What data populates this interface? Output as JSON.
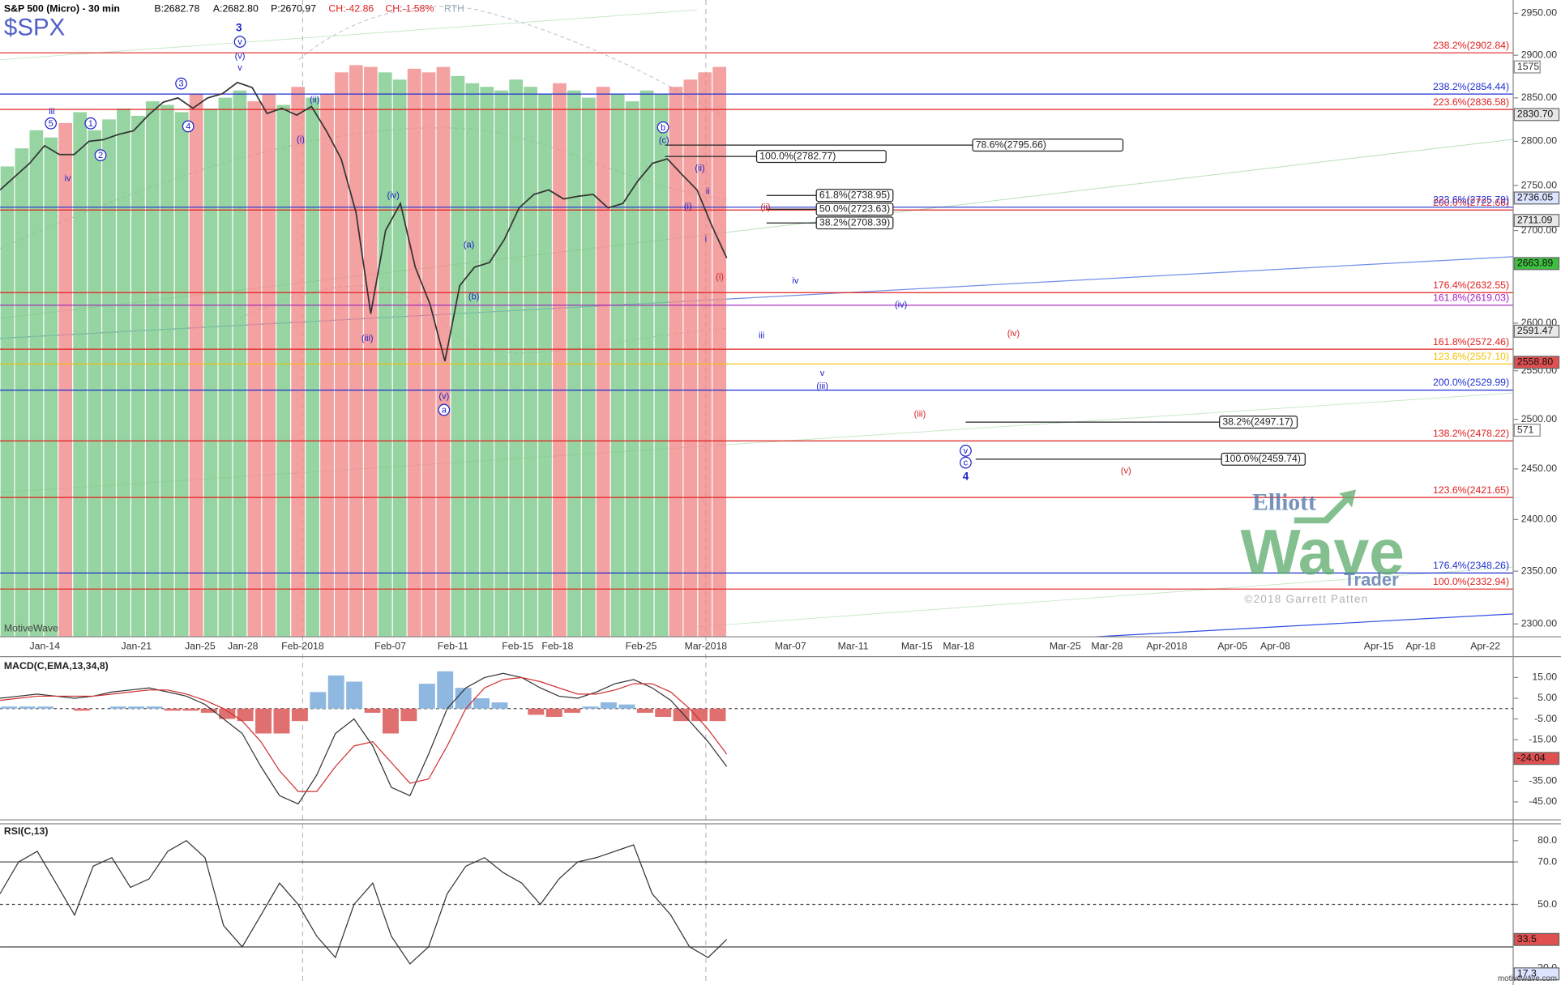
{
  "header": {
    "instrument": "S&P 500 (Micro) - 30 min",
    "bid": "B:2682.78",
    "ask": "A:2682.80",
    "price": "P:2670.97",
    "change": "CH:-42.86",
    "change_pct": "CH:-1.58%",
    "session": "RTH",
    "symbol": "$SPX",
    "platform": "MotiveWave",
    "footer": "motivewave.com"
  },
  "logo": {
    "line1": "Elliott",
    "line2": "Wave",
    "line3": "Trader",
    "copyright": "©2018 Garrett Patten"
  },
  "chart_data": [
    {
      "type": "line",
      "log_scale": true,
      "ylim": [
        2288,
        2966
      ],
      "yticks": [
        {
          "value": 2950,
          "label": "2950.00"
        },
        {
          "value": 2900,
          "label": "2900.00"
        },
        {
          "value": 2850,
          "label": "2850.00"
        },
        {
          "value": 2800,
          "label": "2800.00"
        },
        {
          "value": 2750,
          "label": "2750.00"
        },
        {
          "value": 2700,
          "label": "2700.00"
        },
        {
          "value": 2600,
          "label": "2600.00"
        },
        {
          "value": 2550,
          "label": "2550.00"
        },
        {
          "value": 2500,
          "label": "2500.00"
        },
        {
          "value": 2450,
          "label": "2450.00"
        },
        {
          "value": 2400,
          "label": "2400.00"
        },
        {
          "value": 2350,
          "label": "2350.00"
        },
        {
          "value": 2300,
          "label": "2300.00"
        }
      ],
      "x_labels": [
        "Jan-14",
        "Jan-21",
        "Jan-25",
        "Jan-28",
        "Feb-2018",
        "Feb-07",
        "Feb-11",
        "Feb-15",
        "Feb-18",
        "Feb-25",
        "Mar-2018",
        "Mar-07",
        "Mar-11",
        "Mar-15",
        "Mar-18",
        "Mar-25",
        "Mar-28",
        "Apr-2018",
        "Apr-05",
        "Apr-08",
        "Apr-15",
        "Apr-18",
        "Apr-22"
      ],
      "color": "#333333",
      "values": [
        2745,
        2760,
        2775,
        2795,
        2785,
        2785,
        2800,
        2802,
        2808,
        2812,
        2830,
        2845,
        2850,
        2838,
        2850,
        2855,
        2868,
        2862,
        2832,
        2838,
        2830,
        2840,
        2812,
        2780,
        2720,
        2610,
        2700,
        2730,
        2660,
        2620,
        2560,
        2640,
        2660,
        2665,
        2690,
        2725,
        2740,
        2745,
        2735,
        2738,
        2740,
        2725,
        2730,
        2755,
        2775,
        2780,
        2762,
        2745,
        2705,
        2670
      ],
      "volume": {
        "ylim": [
          0,
          1760
        ],
        "up_color": "#7cc98a",
        "down_color": "#f08a8a",
        "values": [
          1300,
          1350,
          1400,
          1380,
          1420,
          1450,
          1400,
          1430,
          1460,
          1440,
          1480,
          1470,
          1450,
          1500,
          1460,
          1490,
          1510,
          1480,
          1500,
          1470,
          1520,
          1490,
          1500,
          1560,
          1580,
          1575,
          1560,
          1540,
          1570,
          1560,
          1575,
          1550,
          1530,
          1520,
          1510,
          1540,
          1520,
          1500,
          1530,
          1510,
          1490,
          1520,
          1500,
          1480,
          1510,
          1500,
          1520,
          1540,
          1560,
          1575
        ]
      },
      "volume_boxes": [
        1575,
        571
      ],
      "levels": [
        {
          "label": "238.2%(2902.84)",
          "value": 2902.84,
          "color": "#e02020"
        },
        {
          "label": "238.2%(2854.44)",
          "value": 2854.44,
          "color": "#2030d0"
        },
        {
          "label": "223.6%(2836.58)",
          "value": 2836.58,
          "color": "#e02020"
        },
        {
          "label": "200.0%(2722.66)",
          "value": 2722.66,
          "color": "#e02020"
        },
        {
          "label": "223.6%(2725.79)",
          "value": 2725.79,
          "color": "#2030d0"
        },
        {
          "label": "176.4%(2632.55)",
          "value": 2632.55,
          "color": "#e02020"
        },
        {
          "label": "161.8%(2619.03)",
          "value": 2619.03,
          "color": "#a020c0"
        },
        {
          "label": "161.8%(2572.46)",
          "value": 2572.46,
          "color": "#e02020"
        },
        {
          "label": "123.6%(2557.10)",
          "value": 2557.1,
          "color": "#f0c000"
        },
        {
          "label": "200.0%(2529.99)",
          "value": 2529.99,
          "color": "#2030d0"
        },
        {
          "label": "138.2%(2478.22)",
          "value": 2478.22,
          "color": "#e02020"
        },
        {
          "label": "123.6%(2421.65)",
          "value": 2421.65,
          "color": "#e02020"
        },
        {
          "label": "176.4%(2348.26)",
          "value": 2348.26,
          "color": "#2030d0"
        },
        {
          "label": "100.0%(2332.94)",
          "value": 2332.94,
          "color": "#e02020"
        }
      ],
      "retracements": [
        {
          "label": "100.0%(2782.77)",
          "value": 2782.77
        },
        {
          "label": "78.6%(2795.66)",
          "value": 2795.66
        },
        {
          "label": "61.8%(2738.95)",
          "value": 2738.95
        },
        {
          "label": "50.0%(2723.63)",
          "value": 2723.63
        },
        {
          "label": "38.2%(2708.39)",
          "value": 2708.39
        },
        {
          "label": "38.2%(2497.17)",
          "value": 2497.17
        },
        {
          "label": "100.0%(2459.74)",
          "value": 2459.74
        }
      ],
      "price_boxes": [
        {
          "value": 2830.7,
          "label": "2830.70",
          "color": "#e8e8e8"
        },
        {
          "value": 2736.05,
          "label": "2736.05",
          "color": "#dde4ff"
        },
        {
          "value": 2711.09,
          "label": "2711.09",
          "color": "#e8e8e8"
        },
        {
          "value": 2663.89,
          "label": "2663.89",
          "color": "#3fbf3f"
        },
        {
          "value": 2591.47,
          "label": "2591.47",
          "color": "#e8e8e8"
        },
        {
          "value": 2558.8,
          "label": "2558.80",
          "color": "#e05050"
        }
      ],
      "wave_labels": [
        {
          "text": "3",
          "color": "#1e22c8",
          "bold": true
        },
        {
          "text": "v",
          "color": "#1e22c8",
          "circled": true
        },
        {
          "text": "(v)",
          "color": "#1e22c8"
        },
        {
          "text": "v",
          "color": "#1e22c8"
        },
        {
          "text": "iii",
          "color": "#1e22c8"
        },
        {
          "text": "5",
          "color": "#1e22c8",
          "circled": true
        },
        {
          "text": "1",
          "color": "#1e22c8",
          "circled": true
        },
        {
          "text": "iv",
          "color": "#1e22c8"
        },
        {
          "text": "2",
          "color": "#1e22c8",
          "circled": true
        },
        {
          "text": "3",
          "color": "#1e22c8",
          "circled": true
        },
        {
          "text": "4",
          "color": "#1e22c8",
          "circled": true
        },
        {
          "text": "(ii)",
          "color": "#1e22c8"
        },
        {
          "text": "(i)",
          "color": "#1e22c8"
        },
        {
          "text": "(iv)",
          "color": "#1e22c8"
        },
        {
          "text": "(iii)",
          "color": "#1e22c8"
        },
        {
          "text": "(a)",
          "color": "#1e22c8"
        },
        {
          "text": "(b)",
          "color": "#1e22c8"
        },
        {
          "text": "(v)",
          "color": "#1e22c8"
        },
        {
          "text": "a",
          "color": "#1e22c8",
          "circled": true
        },
        {
          "text": "b",
          "color": "#1e22c8",
          "circled": true
        },
        {
          "text": "(c)",
          "color": "#1e22c8"
        },
        {
          "text": "(ii)",
          "color": "#1e22c8"
        },
        {
          "text": "ii",
          "color": "#1e22c8"
        },
        {
          "text": "(i)",
          "color": "#1e22c8"
        },
        {
          "text": "i",
          "color": "#1e22c8"
        },
        {
          "text": "iv",
          "color": "#1e22c8"
        },
        {
          "text": "(iv)",
          "color": "#1e22c8"
        },
        {
          "text": "iii",
          "color": "#1e22c8"
        },
        {
          "text": "v",
          "color": "#1e22c8"
        },
        {
          "text": "(iii)",
          "color": "#1e22c8"
        },
        {
          "text": "v",
          "color": "#1e22c8",
          "circled": true
        },
        {
          "text": "c",
          "color": "#1e22c8",
          "circled": true
        },
        {
          "text": "4",
          "color": "#1e22c8",
          "bold": true
        },
        {
          "text": "(ii)",
          "color": "#d02020"
        },
        {
          "text": "(i)",
          "color": "#d02020"
        },
        {
          "text": "(iv)",
          "color": "#d02020"
        },
        {
          "text": "(iii)",
          "color": "#d02020"
        },
        {
          "text": "(v)",
          "color": "#d02020"
        }
      ]
    },
    {
      "type": "macd",
      "title": "MACD(C,EMA,13,34,8)",
      "ylim": [
        -52.7,
        24.1
      ],
      "yticks": [
        {
          "value": 15,
          "label": "15.00"
        },
        {
          "value": 5,
          "label": "5.00"
        },
        {
          "value": -5,
          "label": "-5.00"
        },
        {
          "value": -15,
          "label": "-15.00"
        },
        {
          "value": -35,
          "label": "-35.00"
        },
        {
          "value": -45,
          "label": "-45.00"
        }
      ],
      "zero_line": 0,
      "last_box": {
        "value": -24.04,
        "color": "#e05050"
      },
      "series": [
        {
          "color": "#333333",
          "values": [
            5,
            6,
            7,
            6,
            5,
            6,
            8,
            9,
            10,
            8,
            6,
            2,
            -5,
            -12,
            -28,
            -42,
            -46,
            -32,
            -12,
            -5,
            -18,
            -38,
            -42,
            -22,
            0,
            10,
            15,
            17,
            15,
            10,
            6,
            5,
            8,
            12,
            14,
            10,
            4,
            -6,
            -16,
            -28
          ]
        },
        {
          "color": "#d03030",
          "values": [
            4,
            5,
            6,
            6,
            6,
            6,
            7,
            8,
            9,
            9,
            7,
            4,
            0,
            -6,
            -16,
            -30,
            -40,
            -40,
            -28,
            -18,
            -16,
            -26,
            -36,
            -34,
            -18,
            0,
            10,
            14,
            15,
            13,
            10,
            7,
            7,
            9,
            12,
            12,
            8,
            0,
            -10,
            -22
          ]
        }
      ],
      "histogram": {
        "up_color": "#8fb8e0",
        "down_color": "#e07070",
        "values": [
          1,
          1,
          1,
          0,
          -1,
          0,
          1,
          1,
          1,
          -1,
          -1,
          -2,
          -5,
          -6,
          -12,
          -12,
          -6,
          8,
          16,
          13,
          -2,
          -12,
          -6,
          12,
          18,
          10,
          5,
          3,
          0,
          -3,
          -4,
          -2,
          1,
          3,
          2,
          -2,
          -4,
          -6,
          -6,
          -6
        ]
      }
    },
    {
      "type": "rsi",
      "title": "RSI(C,13)",
      "ylim": [
        14.4,
        87
      ],
      "yticks": [
        {
          "value": 80,
          "label": "80.0"
        },
        {
          "value": 70,
          "label": "70.0"
        },
        {
          "value": 50,
          "label": "50.0"
        },
        {
          "value": 20,
          "label": "20.0"
        }
      ],
      "levels": [
        70,
        50,
        30
      ],
      "color": "#333333",
      "values": [
        55,
        70,
        75,
        60,
        45,
        68,
        72,
        58,
        62,
        75,
        80,
        72,
        40,
        30,
        45,
        60,
        50,
        35,
        25,
        50,
        60,
        35,
        22,
        30,
        55,
        68,
        72,
        65,
        60,
        50,
        62,
        70,
        72,
        75,
        78,
        55,
        45,
        30,
        25,
        33.5
      ],
      "boxes": [
        {
          "value": 33.5,
          "color": "#e05050"
        },
        {
          "value": 17.3,
          "color": "#dde4ff"
        }
      ]
    }
  ]
}
